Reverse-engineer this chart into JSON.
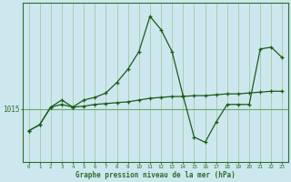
{
  "title": "Graphe pression niveau de la mer (hPa)",
  "bg_color": "#cce8ee",
  "line_color": "#1a5c1a",
  "marker_color": "#1a5c1a",
  "grid_color_v": "#a8c8a8",
  "grid_color_h": "#6aaa6a",
  "axis_color": "#2d6e2d",
  "xlim": [
    -0.5,
    23.5
  ],
  "ylim": [
    1009,
    1027
  ],
  "ytick_value": 1015,
  "xticks": [
    0,
    1,
    2,
    3,
    4,
    5,
    6,
    7,
    8,
    9,
    10,
    11,
    12,
    13,
    14,
    15,
    16,
    17,
    18,
    19,
    20,
    21,
    22,
    23
  ],
  "series1_x": [
    0,
    1,
    2,
    3,
    4,
    5,
    6,
    7,
    8,
    9,
    10,
    11,
    12,
    13,
    14,
    15,
    16,
    17,
    18,
    19,
    20,
    21,
    22,
    23
  ],
  "series1_y": [
    1012.5,
    1013.2,
    1015.2,
    1016.0,
    1015.2,
    1016.0,
    1016.3,
    1016.8,
    1018.0,
    1019.5,
    1021.5,
    1025.5,
    1024.0,
    1021.5,
    1016.5,
    1011.8,
    1011.2,
    1013.5,
    1015.5,
    1015.5,
    1015.5,
    1021.8,
    1022.0,
    1020.8
  ],
  "series2_x": [
    0,
    1,
    2,
    3,
    4,
    5,
    6,
    7,
    8,
    9,
    10,
    11,
    12,
    13,
    14,
    15,
    16,
    17,
    18,
    19,
    20,
    21,
    22,
    23
  ],
  "series2_y": [
    1012.5,
    1013.2,
    1015.2,
    1015.5,
    1015.2,
    1015.3,
    1015.5,
    1015.6,
    1015.7,
    1015.8,
    1016.0,
    1016.2,
    1016.3,
    1016.4,
    1016.4,
    1016.5,
    1016.5,
    1016.6,
    1016.7,
    1016.7,
    1016.8,
    1016.9,
    1017.0,
    1017.0
  ]
}
